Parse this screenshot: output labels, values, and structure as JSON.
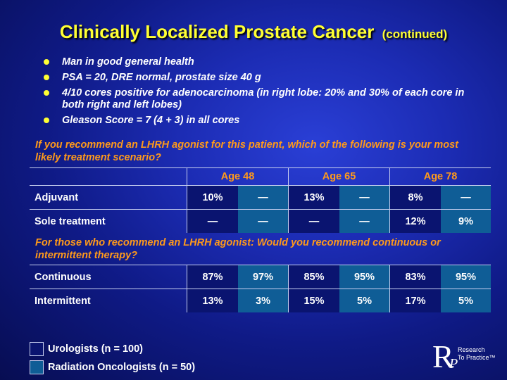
{
  "title": {
    "main": "Clinically Localized Prostate Cancer",
    "suffix": "(continued)"
  },
  "bullets": [
    "Man in good general health",
    "PSA = 20, DRE normal, prostate size 40 g",
    "4/10 cores positive for adenocarcinoma (in right lobe: 20% and 30% of each core in both right and left lobes)",
    "Gleason Score = 7 (4 + 3) in all cores"
  ],
  "question1": "If you recommend an LHRH agonist for this patient, which of the following is your most likely treatment scenario?",
  "ages": [
    "Age 48",
    "Age 65",
    "Age 78"
  ],
  "table1": [
    {
      "label": "Adjuvant",
      "values": [
        "10%",
        "—",
        "13%",
        "—",
        "8%",
        "—"
      ]
    },
    {
      "label": "Sole treatment",
      "values": [
        "—",
        "—",
        "—",
        "—",
        "12%",
        "9%"
      ]
    }
  ],
  "question2": "For those who recommend an LHRH agonist: Would you recommend continuous or intermittent therapy?",
  "table2": [
    {
      "label": "Continuous",
      "values": [
        "87%",
        "97%",
        "85%",
        "95%",
        "83%",
        "95%"
      ]
    },
    {
      "label": "Intermittent",
      "values": [
        "13%",
        "3%",
        "15%",
        "5%",
        "17%",
        "5%"
      ]
    }
  ],
  "legend": [
    {
      "label": "Urologists  (n = 100)",
      "color": "#0a1470"
    },
    {
      "label": "Radiation Oncologists  (n = 50)",
      "color": "#0f5d96"
    }
  ],
  "logo": {
    "line1": "Research",
    "line2": "To Practice",
    "mark": "™"
  },
  "colors": {
    "title": "#ffff33",
    "question": "#ff9a1a",
    "urologists": "#0a1470",
    "radiation": "#0f5d96"
  }
}
